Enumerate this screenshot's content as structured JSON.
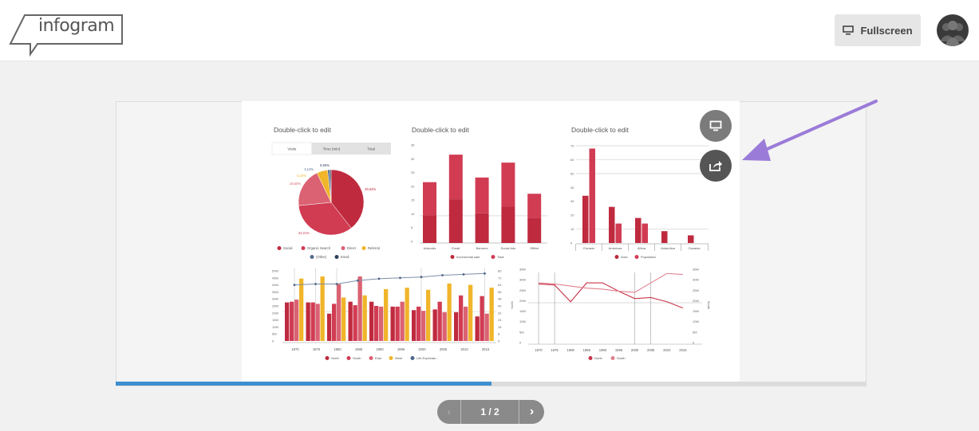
{
  "header": {
    "logo_text": "infogram",
    "fullscreen_label": "Fullscreen"
  },
  "slide": {
    "progress": 0.5
  },
  "pager": {
    "label": "1 / 2"
  },
  "colors": {
    "accent": "#3d8fd0",
    "arrow": "#9b7bd8"
  },
  "chart_data": [
    {
      "type": "pie",
      "title": "Double-click to edit",
      "tabs": [
        "Visits",
        "Time (min)",
        "Total"
      ],
      "active_tab": "Visits",
      "slices": [
        {
          "label": "Social",
          "value": 39.53,
          "display": "39,53%",
          "color": "#bf2a3e"
        },
        {
          "label": "Organic Search",
          "value": 34.01,
          "display": "34,01%",
          "color": "#d13c53"
        },
        {
          "label": "Direct",
          "value": 19.5,
          "display": "19,50%",
          "color": "#da6272"
        },
        {
          "label": "Referral",
          "value": 5.42,
          "display": "5,42%",
          "color": "#f0b52a"
        },
        {
          "label": "(Other)",
          "value": 1.14,
          "display": "1,14%",
          "color": "#52698e"
        },
        {
          "label": "Email",
          "value": 0.6,
          "display": "0,60%",
          "color": "#2c3e5c"
        }
      ]
    },
    {
      "type": "bar",
      "stacked": true,
      "title": "Double-click to edit",
      "categories": [
        "Adwords",
        "Email",
        "Banners",
        "Social Ads",
        "Offline"
      ],
      "series": [
        {
          "name": "Incremental sale",
          "values": [
            9.5,
            15.3,
            10.2,
            12.7,
            8.5
          ],
          "color": "#bf2a3e"
        },
        {
          "name": "Total",
          "values": [
            21.5,
            31.5,
            23.2,
            28.6,
            17.3
          ],
          "color": "#d13c53"
        }
      ],
      "yticks": [
        "0",
        "5",
        "10",
        "15",
        "20",
        "25",
        "30",
        "35"
      ],
      "ylim": [
        0,
        35
      ]
    },
    {
      "type": "bar",
      "title": "Double-click to edit",
      "categories": [
        "Eurasia",
        "Americas",
        "Africa",
        "Antarctica",
        "Oceania"
      ],
      "series": [
        {
          "name": "Area",
          "values": [
            34,
            26,
            18,
            8.5,
            5.5
          ],
          "color": "#bf2a3e"
        },
        {
          "name": "Population",
          "values": [
            68,
            14,
            14,
            null,
            null
          ],
          "color": "#d13c53"
        }
      ],
      "yticks": [
        "0",
        "10",
        "20",
        "30",
        "40",
        "50",
        "60",
        "70"
      ],
      "ylim": [
        0,
        70
      ]
    },
    {
      "type": "bar",
      "categories": [
        "1970",
        "1975",
        "1980",
        "1985",
        "1990",
        "1995",
        "2000",
        "2005",
        "2010",
        "2015"
      ],
      "series": [
        {
          "name": "North",
          "values": [
            27.5,
            27.5,
            19.5,
            28,
            28,
            24.5,
            22,
            22.5,
            20.5,
            17.5
          ],
          "color": "#bf2a3e"
        },
        {
          "name": "South",
          "values": [
            28,
            27.5,
            26.5,
            25.5,
            25,
            24.5,
            24.5,
            28,
            32.5,
            32
          ],
          "color": "#d13c53"
        },
        {
          "name": "East",
          "values": [
            29.5,
            26.5,
            40.5,
            46,
            24.5,
            28,
            21.5,
            20.5,
            24.5,
            19.5
          ],
          "color": "#da6272"
        },
        {
          "name": "West",
          "values": [
            44.5,
            46,
            31,
            32.5,
            37,
            38,
            36.5,
            41,
            40,
            38
          ],
          "color": "#f0b52a"
        },
        {
          "name": "Life Expectan...",
          "values": [
            64,
            65,
            65,
            69,
            71,
            72,
            73,
            75,
            76,
            77
          ],
          "color": "#7d8ea8",
          "axis": "right",
          "kind": "line"
        }
      ],
      "yticks_left": [
        "0",
        "5M",
        "10M",
        "15M",
        "20M",
        "25M",
        "30M",
        "35M",
        "40M",
        "45M",
        "50M"
      ],
      "yticks_right": [
        "0",
        "8",
        "16",
        "24",
        "32",
        "40",
        "48",
        "56",
        "64",
        "72",
        "80"
      ],
      "ylim_left": [
        0,
        50
      ],
      "ylim_right": [
        0,
        80
      ]
    },
    {
      "type": "line",
      "categories": [
        "1970",
        "1975",
        "1980",
        "1985",
        "1990",
        "1995",
        "2000",
        "2005",
        "2010",
        "2015"
      ],
      "series": [
        {
          "name": "North",
          "values": [
            28,
            27.5,
            19.5,
            28.5,
            28.5,
            24.5,
            21,
            21.5,
            19.5,
            16.5
          ],
          "color": "#c8354b"
        },
        {
          "name": "South",
          "values": [
            28.5,
            28,
            27,
            26,
            25.5,
            24.5,
            24,
            28.5,
            33,
            32.5
          ],
          "color": "#e0808d"
        }
      ],
      "ylabel_left": "North",
      "ylabel_right": "South",
      "yticks": [
        "0",
        "5M",
        "10M",
        "15M",
        "20M",
        "25M",
        "30M",
        "35M"
      ],
      "ylim": [
        0,
        35
      ]
    }
  ]
}
